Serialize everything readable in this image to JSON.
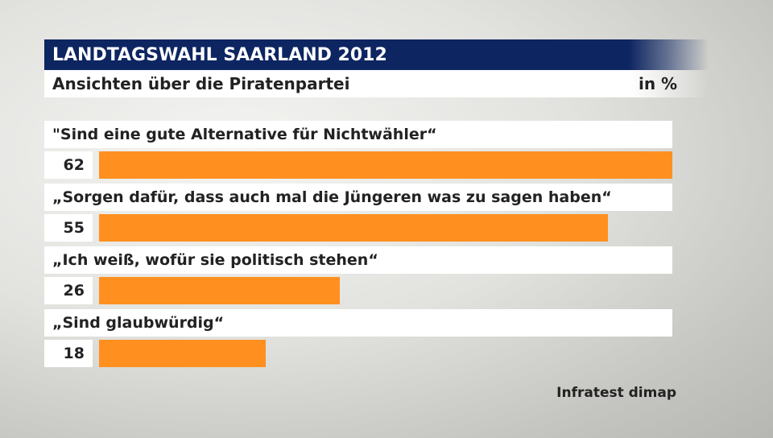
{
  "header": {
    "title": "LANDTAGSWAHL SAARLAND 2012",
    "subtitle": "Ansichten über die Piratenpartei",
    "unit": "in %"
  },
  "source": "Infratest dimap",
  "colors": {
    "title_background": "#0d2561",
    "bar": "#ff9020",
    "text": "#222222"
  },
  "chart_data": {
    "type": "bar",
    "orientation": "horizontal",
    "title": "LANDTAGSWAHL SAARLAND 2012",
    "subtitle": "Ansichten über die Piratenpartei",
    "unit": "in %",
    "categories": [
      "\"Sind eine gute Alternative für Nichtwähler“",
      "„Sorgen dafür, dass auch mal die Jüngeren was zu sagen haben“",
      "„Ich weiß, wofür sie politisch stehen“",
      "„Sind glaubwürdig“"
    ],
    "values": [
      62,
      55,
      26,
      18
    ],
    "xlim": [
      0,
      62
    ],
    "grid": false,
    "legend": "none"
  }
}
